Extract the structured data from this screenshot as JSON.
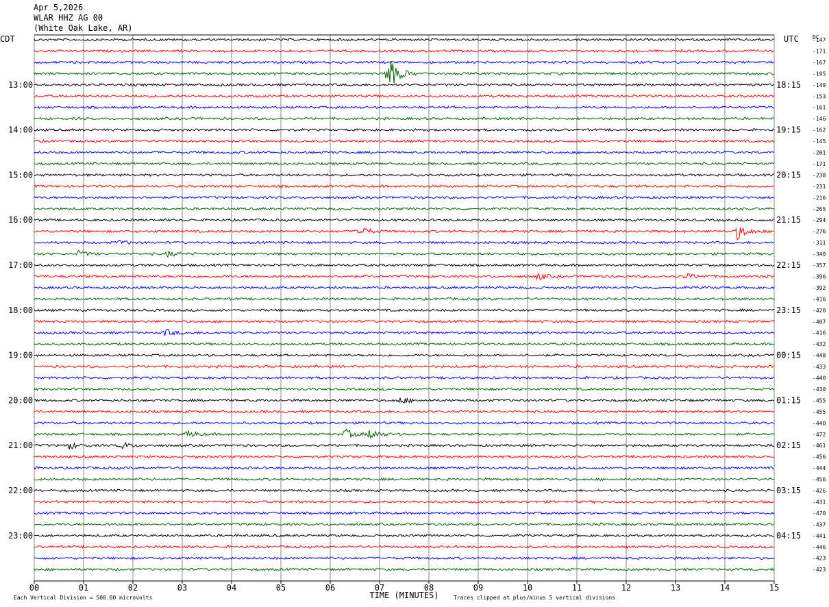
{
  "header": {
    "date": "Apr 5,2026",
    "station": "WLAR HHZ AG 00",
    "location": "(White Oak Lake, AR)"
  },
  "chart_data": {
    "type": "line",
    "title": "Apr 5,2026",
    "left_timezone": "CDT",
    "right_timezone": "UTC",
    "dc_label": "DC",
    "xlabel": "TIME (MINUTES)",
    "xlim": [
      0,
      15
    ],
    "x_ticks": [
      "00",
      "01",
      "02",
      "03",
      "04",
      "05",
      "06",
      "07",
      "08",
      "09",
      "10",
      "11",
      "12",
      "13",
      "14",
      "15"
    ],
    "left_hour_labels": [
      "13:00",
      "14:00",
      "15:00",
      "16:00",
      "17:00",
      "18:00",
      "19:00",
      "20:00",
      "21:00",
      "22:00",
      "23:00"
    ],
    "right_hour_labels": [
      "18:15",
      "19:15",
      "20:15",
      "21:15",
      "22:15",
      "23:15",
      "00:15",
      "01:15",
      "02:15",
      "03:15",
      "04:15"
    ],
    "trace_colors": [
      "#000000",
      "#ff0000",
      "#0000ff",
      "#006400"
    ],
    "dc_offsets": [
      -147,
      -171,
      -167,
      -195,
      -149,
      -153,
      -161,
      -146,
      -162,
      -145,
      -201,
      -171,
      -238,
      -231,
      -216,
      -265,
      -294,
      -276,
      -311,
      -340,
      -357,
      -396,
      -392,
      -416,
      -420,
      -407,
      -416,
      -432,
      -448,
      -433,
      -440,
      -430,
      -455,
      -455,
      -440,
      -472,
      -461,
      -456,
      -444,
      -456,
      -426,
      -431,
      -470,
      -437,
      -441,
      -446,
      -423,
      -423
    ],
    "events": [
      {
        "trace": 3,
        "minute": 7.15,
        "amplitude": 30
      },
      {
        "trace": 17,
        "minute": 6.55,
        "amplitude": 10
      },
      {
        "trace": 17,
        "minute": 14.25,
        "amplitude": 11
      },
      {
        "trace": 18,
        "minute": 1.7,
        "amplitude": 3
      },
      {
        "trace": 19,
        "minute": 0.9,
        "amplitude": 4
      },
      {
        "trace": 19,
        "minute": 2.7,
        "amplitude": 4
      },
      {
        "trace": 21,
        "minute": 10.2,
        "amplitude": 5
      },
      {
        "trace": 21,
        "minute": 13.2,
        "amplitude": 4
      },
      {
        "trace": 26,
        "minute": 2.65,
        "amplitude": 5
      },
      {
        "trace": 32,
        "minute": 7.4,
        "amplitude": 5
      },
      {
        "trace": 35,
        "minute": 3.1,
        "amplitude": 5
      },
      {
        "trace": 35,
        "minute": 6.3,
        "amplitude": 7
      },
      {
        "trace": 35,
        "minute": 6.8,
        "amplitude": 8
      },
      {
        "trace": 36,
        "minute": 0.7,
        "amplitude": 5
      },
      {
        "trace": 36,
        "minute": 1.75,
        "amplitude": 5
      }
    ],
    "footer_left": "Each Vertical Division =  500.00 microvolts",
    "footer_right": "Traces clipped at plus/minus 5 vertical divisions"
  }
}
